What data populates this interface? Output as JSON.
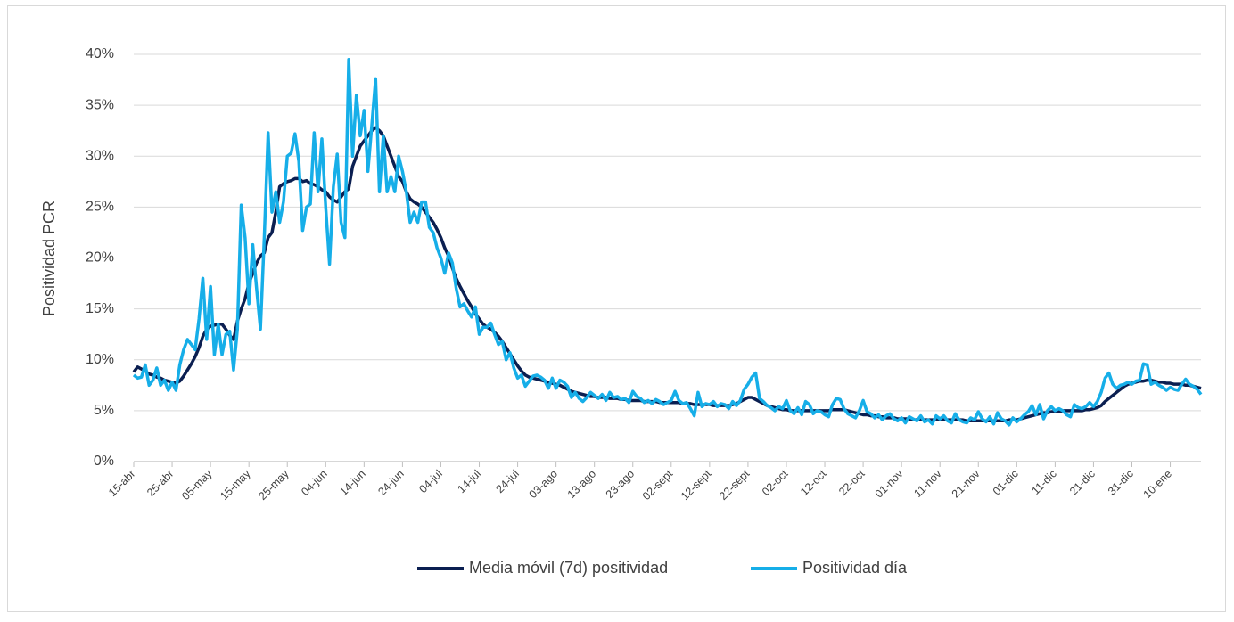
{
  "chart_data": {
    "type": "line",
    "y_label": "Positividad PCR",
    "categories": [
      "15-abr",
      null,
      null,
      null,
      null,
      null,
      null,
      null,
      null,
      null,
      "25-abr",
      null,
      null,
      null,
      null,
      null,
      null,
      null,
      null,
      null,
      "05-may",
      null,
      null,
      null,
      null,
      null,
      null,
      null,
      null,
      null,
      "15-may",
      null,
      null,
      null,
      null,
      null,
      null,
      null,
      null,
      null,
      "25-may",
      null,
      null,
      null,
      null,
      null,
      null,
      null,
      null,
      null,
      "04-jun",
      null,
      null,
      null,
      null,
      null,
      null,
      null,
      null,
      null,
      "14-jun",
      null,
      null,
      null,
      null,
      null,
      null,
      null,
      null,
      null,
      "24-jun",
      null,
      null,
      null,
      null,
      null,
      null,
      null,
      null,
      null,
      "04-jul",
      null,
      null,
      null,
      null,
      null,
      null,
      null,
      null,
      null,
      "14-jul",
      null,
      null,
      null,
      null,
      null,
      null,
      null,
      null,
      null,
      "24-jul",
      null,
      null,
      null,
      null,
      null,
      null,
      null,
      null,
      null,
      "03-ago",
      null,
      null,
      null,
      null,
      null,
      null,
      null,
      null,
      null,
      "13-ago",
      null,
      null,
      null,
      null,
      null,
      null,
      null,
      null,
      null,
      "23-ago",
      null,
      null,
      null,
      null,
      null,
      null,
      null,
      null,
      null,
      "02-sept",
      null,
      null,
      null,
      null,
      null,
      null,
      null,
      null,
      null,
      "12-sept",
      null,
      null,
      null,
      null,
      null,
      null,
      null,
      null,
      null,
      "22-sept",
      null,
      null,
      null,
      null,
      null,
      null,
      null,
      null,
      null,
      "02-oct",
      null,
      null,
      null,
      null,
      null,
      null,
      null,
      null,
      null,
      "12-oct",
      null,
      null,
      null,
      null,
      null,
      null,
      null,
      null,
      null,
      "22-oct",
      null,
      null,
      null,
      null,
      null,
      null,
      null,
      null,
      null,
      "01-nov",
      null,
      null,
      null,
      null,
      null,
      null,
      null,
      null,
      null,
      "11-nov",
      null,
      null,
      null,
      null,
      null,
      null,
      null,
      null,
      null,
      "21-nov",
      null,
      null,
      null,
      null,
      null,
      null,
      null,
      null,
      null,
      "01-dic",
      null,
      null,
      null,
      null,
      null,
      null,
      null,
      null,
      null,
      "11-dic",
      null,
      null,
      null,
      null,
      null,
      null,
      null,
      null,
      null,
      "21-dic",
      null,
      null,
      null,
      null,
      null,
      null,
      null,
      null,
      null,
      "31-dic",
      null,
      null,
      null,
      null,
      null,
      null,
      null,
      null,
      null,
      "10-ene",
      null,
      null,
      null,
      null,
      null,
      null,
      null,
      null
    ],
    "series": [
      {
        "name": "Media móvil (7d) positividad",
        "color": "#0b1f51",
        "values": [
          8.8,
          9.3,
          9.1,
          8.9,
          8.6,
          8.5,
          8.3,
          8.2,
          8.0,
          7.9,
          7.8,
          7.7,
          7.9,
          8.4,
          9.0,
          9.6,
          10.3,
          11.2,
          12.3,
          13.0,
          13.3,
          13.4,
          13.5,
          13.5,
          13.0,
          12.4,
          12.0,
          13.8,
          15.0,
          16.0,
          17.5,
          18.5,
          19.5,
          20.2,
          20.5,
          22.0,
          22.5,
          24.5,
          27.0,
          27.3,
          27.5,
          27.6,
          27.8,
          27.8,
          27.5,
          27.6,
          27.3,
          27.2,
          27.0,
          26.7,
          26.5,
          26.0,
          25.7,
          25.5,
          26.0,
          26.5,
          26.8,
          29.0,
          30.0,
          31.0,
          31.5,
          32.0,
          32.5,
          32.8,
          32.5,
          32.0,
          31.0,
          30.0,
          29.0,
          28.0,
          27.5,
          26.5,
          25.8,
          25.5,
          25.3,
          25.0,
          24.5,
          24.0,
          23.5,
          22.8,
          22.0,
          21.0,
          20.2,
          19.0,
          18.0,
          17.2,
          16.5,
          15.8,
          15.2,
          14.5,
          14.0,
          13.5,
          13.2,
          13.0,
          12.7,
          12.3,
          11.8,
          11.2,
          10.6,
          10.0,
          9.4,
          8.9,
          8.5,
          8.3,
          8.2,
          8.1,
          8.0,
          7.9,
          7.8,
          7.7,
          7.6,
          7.5,
          7.3,
          7.1,
          6.9,
          6.8,
          6.7,
          6.6,
          6.5,
          6.4,
          6.4,
          6.3,
          6.3,
          6.3,
          6.2,
          6.2,
          6.2,
          6.1,
          6.1,
          6.0,
          6.0,
          6.0,
          6.0,
          5.9,
          5.9,
          5.9,
          5.9,
          5.8,
          5.8,
          5.8,
          5.8,
          5.8,
          5.8,
          5.7,
          5.7,
          5.7,
          5.6,
          5.6,
          5.6,
          5.6,
          5.6,
          5.5,
          5.5,
          5.5,
          5.5,
          5.5,
          5.6,
          5.7,
          5.9,
          6.1,
          6.3,
          6.3,
          6.1,
          5.9,
          5.7,
          5.5,
          5.4,
          5.3,
          5.2,
          5.1,
          5.1,
          5.0,
          5.0,
          5.0,
          5.0,
          5.0,
          5.0,
          5.0,
          5.0,
          5.0,
          5.0,
          5.0,
          5.1,
          5.1,
          5.1,
          5.1,
          5.0,
          4.9,
          4.8,
          4.7,
          4.6,
          4.6,
          4.5,
          4.5,
          4.4,
          4.4,
          4.3,
          4.3,
          4.3,
          4.2,
          4.2,
          4.2,
          4.2,
          4.1,
          4.1,
          4.1,
          4.1,
          4.1,
          4.1,
          4.1,
          4.1,
          4.1,
          4.1,
          4.1,
          4.1,
          4.1,
          4.1,
          4.0,
          4.0,
          4.0,
          4.0,
          4.0,
          4.0,
          4.0,
          4.0,
          4.0,
          4.0,
          4.0,
          4.1,
          4.1,
          4.1,
          4.2,
          4.3,
          4.4,
          4.5,
          4.6,
          4.7,
          4.8,
          4.8,
          4.9,
          4.9,
          4.9,
          5.0,
          5.0,
          5.0,
          5.0,
          5.0,
          5.0,
          5.1,
          5.1,
          5.2,
          5.3,
          5.5,
          5.9,
          6.2,
          6.5,
          6.8,
          7.1,
          7.4,
          7.6,
          7.7,
          7.8,
          7.9,
          7.9,
          8.0,
          8.0,
          7.9,
          7.8,
          7.8,
          7.7,
          7.7,
          7.6,
          7.6,
          7.6,
          7.5,
          7.5,
          7.4,
          7.3,
          7.2
        ]
      },
      {
        "name": "Positividad día",
        "color": "#16aee8",
        "values": [
          8.5,
          8.2,
          8.3,
          9.5,
          7.5,
          8.0,
          9.2,
          7.5,
          8.0,
          7.0,
          7.8,
          7.0,
          9.5,
          11.0,
          12.0,
          11.5,
          11.0,
          14.0,
          18.0,
          12.0,
          17.2,
          10.5,
          13.5,
          10.5,
          12.5,
          12.8,
          9.0,
          13.0,
          25.2,
          22.0,
          15.5,
          21.3,
          17.0,
          13.0,
          22.0,
          32.3,
          24.5,
          26.5,
          23.5,
          25.5,
          30.0,
          30.3,
          32.2,
          29.5,
          22.7,
          25.0,
          25.3,
          32.3,
          26.5,
          31.7,
          25.0,
          19.4,
          27.0,
          30.2,
          23.5,
          22.0,
          39.5,
          30.0,
          36.0,
          32.0,
          34.5,
          28.5,
          33.0,
          37.6,
          26.5,
          32.0,
          26.5,
          28.0,
          26.5,
          30.0,
          28.5,
          26.5,
          23.5,
          24.5,
          23.5,
          25.5,
          25.5,
          23.0,
          22.5,
          21.0,
          20.0,
          18.5,
          20.5,
          19.5,
          17.0,
          15.2,
          15.5,
          14.8,
          14.2,
          15.2,
          12.5,
          13.2,
          13.2,
          13.6,
          12.5,
          11.5,
          11.8,
          10.0,
          10.7,
          9.2,
          8.2,
          8.5,
          7.4,
          7.9,
          8.4,
          8.5,
          8.3,
          8.0,
          7.2,
          8.2,
          7.2,
          8.0,
          7.8,
          7.4,
          6.3,
          6.8,
          6.2,
          5.9,
          6.3,
          6.8,
          6.5,
          6.2,
          6.6,
          6.0,
          6.8,
          6.3,
          6.4,
          6.1,
          6.2,
          5.8,
          6.9,
          6.4,
          6.2,
          5.8,
          6.0,
          5.7,
          6.1,
          5.9,
          5.6,
          5.8,
          6.0,
          6.9,
          6.0,
          5.7,
          5.8,
          5.2,
          4.5,
          6.8,
          5.4,
          5.7,
          5.6,
          5.9,
          5.4,
          5.7,
          5.6,
          5.2,
          5.9,
          5.5,
          6.0,
          7.1,
          7.6,
          8.3,
          8.7,
          6.2,
          5.9,
          5.5,
          5.3,
          5.0,
          5.4,
          5.2,
          6.0,
          5.0,
          4.7,
          5.3,
          4.6,
          5.9,
          5.6,
          4.7,
          5.0,
          4.9,
          4.6,
          4.4,
          5.6,
          6.2,
          6.1,
          5.2,
          4.7,
          4.5,
          4.3,
          5.0,
          6.0,
          4.9,
          4.7,
          4.3,
          4.6,
          4.1,
          4.5,
          4.7,
          4.2,
          4.0,
          4.3,
          3.8,
          4.4,
          4.2,
          4.0,
          4.5,
          3.9,
          4.1,
          3.7,
          4.5,
          4.2,
          4.5,
          4.0,
          3.8,
          4.7,
          4.1,
          3.9,
          3.8,
          4.3,
          4.1,
          4.9,
          4.2,
          3.9,
          4.4,
          3.7,
          4.8,
          4.2,
          4.0,
          3.6,
          4.3,
          3.9,
          4.2,
          4.6,
          4.9,
          5.5,
          4.6,
          5.6,
          4.2,
          5.0,
          5.4,
          5.0,
          5.2,
          5.0,
          4.6,
          4.4,
          5.6,
          5.3,
          5.2,
          5.4,
          5.8,
          5.4,
          5.9,
          6.8,
          8.2,
          8.7,
          7.6,
          7.2,
          7.5,
          7.6,
          7.8,
          7.6,
          7.9,
          8.0,
          9.6,
          9.5,
          7.6,
          7.8,
          7.5,
          7.3,
          7.0,
          7.3,
          7.1,
          7.0,
          7.6,
          8.1,
          7.6,
          7.4,
          7.1,
          6.6
        ]
      }
    ],
    "ylim": [
      0,
      40
    ],
    "yticks": [
      {
        "value": 0,
        "label": "0%"
      },
      {
        "value": 5,
        "label": "5%"
      },
      {
        "value": 10,
        "label": "10%"
      },
      {
        "value": 15,
        "label": "15%"
      },
      {
        "value": 20,
        "label": "20%"
      },
      {
        "value": 25,
        "label": "25%"
      },
      {
        "value": 30,
        "label": "30%"
      },
      {
        "value": 35,
        "label": "35%"
      },
      {
        "value": 40,
        "label": "40%"
      }
    ],
    "grid": true,
    "legend": "bottom"
  }
}
